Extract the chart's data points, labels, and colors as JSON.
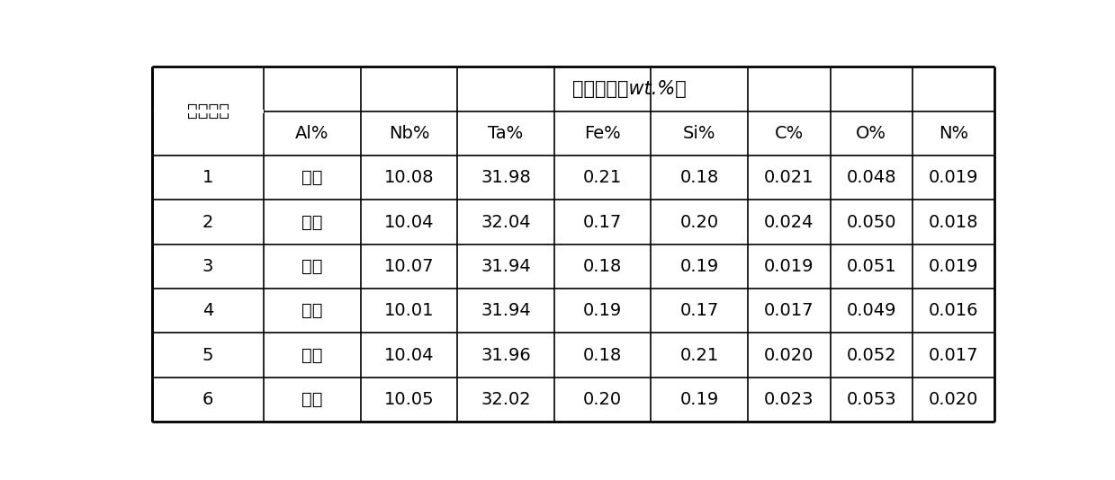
{
  "title_merged": "化学成分（wt.%）",
  "row_header": "取点编号",
  "col_headers": [
    "Al%",
    "Nb%",
    "Ta%",
    "Fe%",
    "Si%",
    "C%",
    "O%",
    "N%"
  ],
  "rows": [
    [
      "1",
      "余量",
      "10.08",
      "31.98",
      "0.21",
      "0.18",
      "0.021",
      "0.048",
      "0.019"
    ],
    [
      "2",
      "余量",
      "10.04",
      "32.04",
      "0.17",
      "0.20",
      "0.024",
      "0.050",
      "0.018"
    ],
    [
      "3",
      "余量",
      "10.07",
      "31.94",
      "0.18",
      "0.19",
      "0.019",
      "0.051",
      "0.019"
    ],
    [
      "4",
      "余量",
      "10.01",
      "31.94",
      "0.19",
      "0.17",
      "0.017",
      "0.049",
      "0.016"
    ],
    [
      "5",
      "余量",
      "10.04",
      "31.96",
      "0.18",
      "0.21",
      "0.020",
      "0.052",
      "0.017"
    ],
    [
      "6",
      "余量",
      "10.05",
      "32.02",
      "0.20",
      "0.19",
      "0.023",
      "0.053",
      "0.020"
    ]
  ],
  "background_color": "#ffffff",
  "line_color": "#000000",
  "text_color": "#000000",
  "font_size": 14,
  "title_font_size": 15,
  "fig_width": 12.39,
  "fig_height": 5.34,
  "dpi": 100
}
